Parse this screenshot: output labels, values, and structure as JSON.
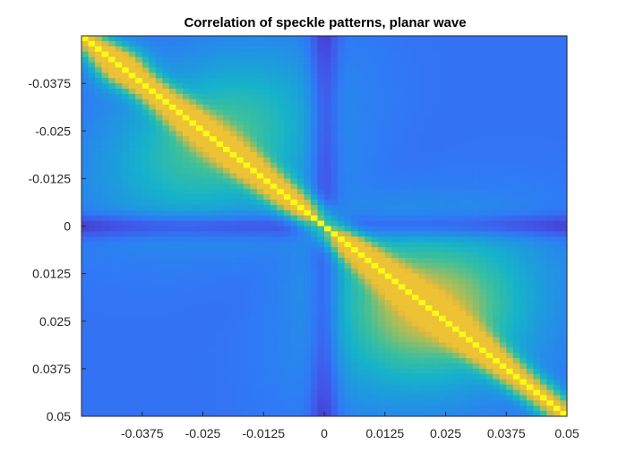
{
  "chart_data": {
    "type": "heatmap",
    "title": "Correlation of speckle patterns, planar wave",
    "xlabel": "",
    "ylabel": "",
    "xlim": [
      -0.05,
      0.05
    ],
    "ylim": [
      -0.05,
      0.05
    ],
    "y_reversed": true,
    "grid_size": 72,
    "colormap": "parula",
    "colormap_stops": [
      "#3e26a8",
      "#4352e5",
      "#2f7af6",
      "#1f98e0",
      "#16b3c9",
      "#3dc09b",
      "#a5be5b",
      "#e5b93b",
      "#fbd32b",
      "#f9fb15"
    ],
    "value_range": [
      0,
      1
    ],
    "description_values": {
      "diagonal": 1.0,
      "background": 0.2,
      "center_row_column": 0.05,
      "off_diagonal_lobe_peak": 0.72
    },
    "x_ticks": [
      "-0.0375",
      "-0.025",
      "-0.0125",
      "0",
      "0.0125",
      "0.025",
      "0.0375",
      "0.05"
    ],
    "x_tick_values": [
      -0.0375,
      -0.025,
      -0.0125,
      0,
      0.0125,
      0.025,
      0.0375,
      0.05
    ],
    "y_ticks": [
      "-0.0375",
      "-0.025",
      "-0.0125",
      "0",
      "0.0125",
      "0.025",
      "0.0375",
      "0.05"
    ],
    "y_tick_values": [
      -0.0375,
      -0.025,
      -0.0125,
      0,
      0.0125,
      0.025,
      0.0375,
      0.05
    ]
  }
}
